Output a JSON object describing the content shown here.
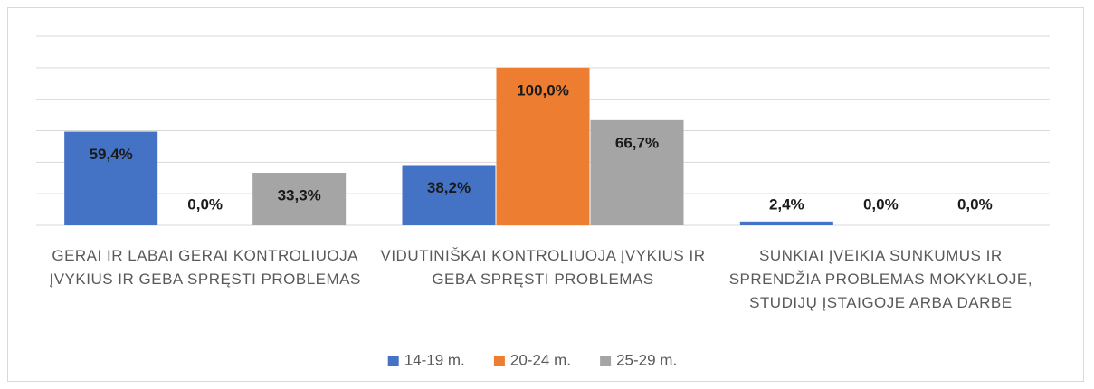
{
  "chart_data": {
    "type": "bar",
    "categories": [
      "GERAI IR LABAI GERAI KONTROLIUOJA ĮVYKIUS IR GEBA SPRĘSTI PROBLEMAS",
      "VIDUTINIŠKAI KONTROLIUOJA ĮVYKIUS IR GEBA SPRĘSTI PROBLEMAS",
      "SUNKIAI ĮVEIKIA SUNKUMUS IR SPRENDŽIA PROBLEMAS MOKYKLOJE, STUDIJŲ ĮSTAIGOJE ARBA DARBE"
    ],
    "series": [
      {
        "name": "14-19 m.",
        "color": "#4472c4",
        "values": [
          59.4,
          38.2,
          2.4
        ],
        "value_labels": [
          "59,4%",
          "38,2%",
          "2,4%"
        ]
      },
      {
        "name": "20-24 m.",
        "color": "#ed7d31",
        "values": [
          0.0,
          100.0,
          0.0
        ],
        "value_labels": [
          "0,0%",
          "100,0%",
          "0,0%"
        ]
      },
      {
        "name": "25-29 m.",
        "color": "#a5a5a5",
        "values": [
          33.3,
          66.7,
          0.0
        ],
        "value_labels": [
          "33,3%",
          "66,7%",
          "0,0%"
        ]
      }
    ],
    "ylim": [
      0,
      120
    ],
    "yticks": [
      0,
      20,
      40,
      60,
      80,
      100,
      120
    ],
    "grid": true,
    "legend": "bottom"
  }
}
